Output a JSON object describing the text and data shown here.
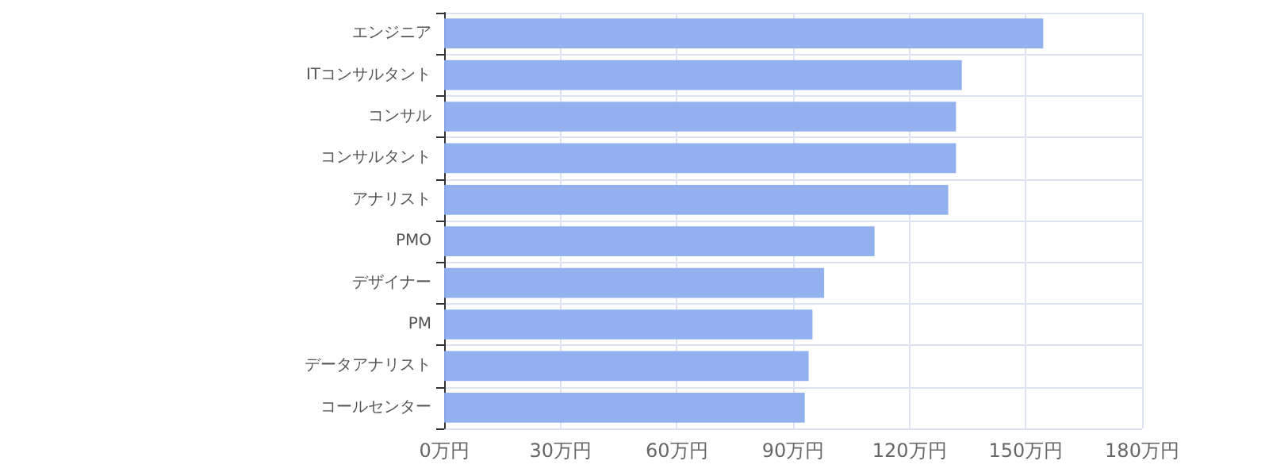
{
  "chart_data": {
    "type": "bar",
    "orientation": "horizontal",
    "categories": [
      "エンジニア",
      "ITコンサルタント",
      "コンサル",
      "コンサルタント",
      "アナリスト",
      "PMO",
      "デザイナー",
      "PM",
      "データアナリスト",
      "コールセンター"
    ],
    "values": [
      154.5,
      133.5,
      132,
      132,
      130,
      111,
      98,
      95,
      94,
      93
    ],
    "color": "#8eadee",
    "xlim": [
      0,
      180
    ],
    "xticks": [
      {
        "value": 0,
        "label": "0万円"
      },
      {
        "value": 30,
        "label": "30万円"
      },
      {
        "value": 60,
        "label": "60万円"
      },
      {
        "value": 90,
        "label": "90万円"
      },
      {
        "value": 120,
        "label": "120万円"
      },
      {
        "value": 150,
        "label": "150万円"
      },
      {
        "value": 180,
        "label": "180万円"
      }
    ],
    "grid": true
  }
}
